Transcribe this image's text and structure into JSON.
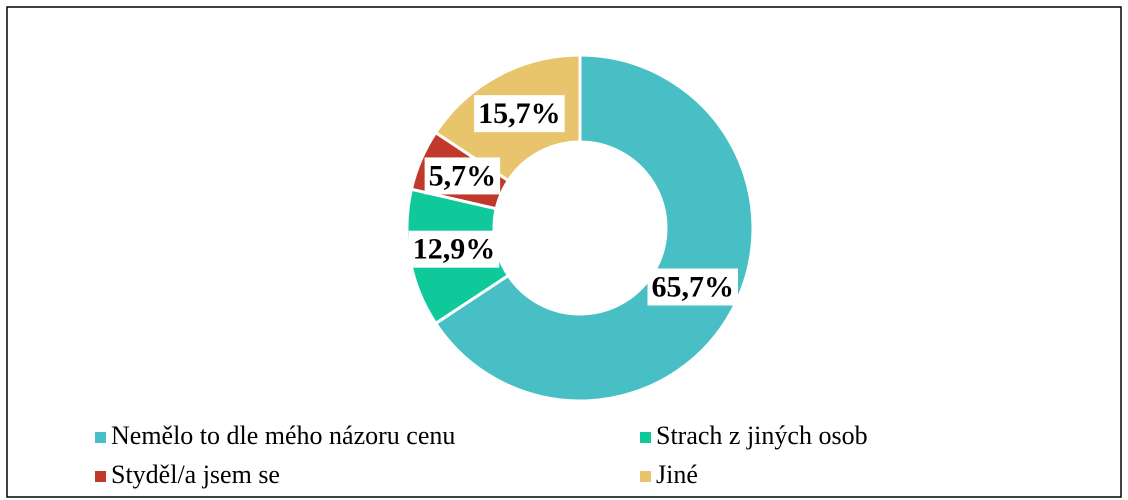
{
  "chart_data": {
    "type": "donut",
    "categories": [
      "Nemělo to dle mého názoru cenu",
      "Strach z jiných osob",
      "Styděl/a jsem se",
      "Jiné"
    ],
    "values": [
      65.7,
      12.9,
      5.7,
      15.7
    ],
    "value_labels": [
      "65,7%",
      "12,9%",
      "5,7%",
      "15,7%"
    ],
    "colors": [
      "#48bfc4",
      "#0fc99b",
      "#c0392b",
      "#e8c46c"
    ]
  }
}
